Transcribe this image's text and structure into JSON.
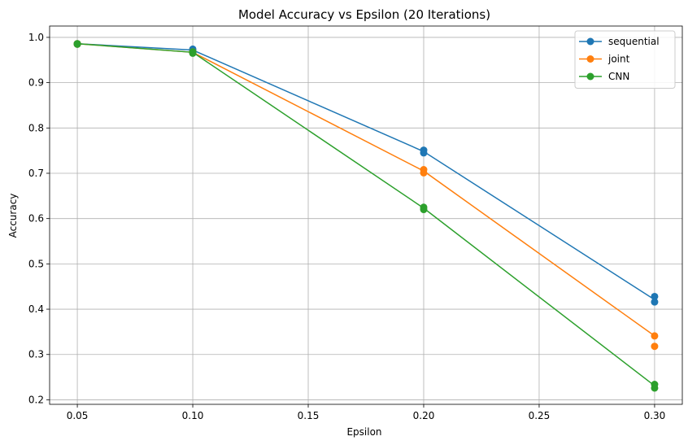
{
  "chart_data": {
    "type": "line",
    "title": "Model Accuracy vs Epsilon (20 Iterations)",
    "xlabel": "Epsilon",
    "ylabel": "Accuracy",
    "xlim": [
      0.038,
      0.312
    ],
    "ylim": [
      0.19,
      1.025
    ],
    "xticks": [
      0.05,
      0.1,
      0.15,
      0.2,
      0.25,
      0.3
    ],
    "xtick_labels": [
      "0.05",
      "0.10",
      "0.15",
      "0.20",
      "0.25",
      "0.30"
    ],
    "yticks": [
      0.2,
      0.3,
      0.4,
      0.5,
      0.6,
      0.7,
      0.8,
      0.9,
      1.0
    ],
    "ytick_labels": [
      "0.2",
      "0.3",
      "0.4",
      "0.5",
      "0.6",
      "0.7",
      "0.8",
      "0.9",
      "1.0"
    ],
    "grid": true,
    "legend_position": "top-right",
    "series": [
      {
        "name": "sequential",
        "color": "#1f77b4",
        "line": [
          [
            0.05,
            0.986
          ],
          [
            0.1,
            0.972
          ],
          [
            0.2,
            0.748
          ],
          [
            0.3,
            0.421
          ]
        ],
        "points": [
          [
            0.05,
            0.986
          ],
          [
            0.05,
            0.985
          ],
          [
            0.1,
            0.974
          ],
          [
            0.1,
            0.97
          ],
          [
            0.2,
            0.751
          ],
          [
            0.2,
            0.745
          ],
          [
            0.3,
            0.428
          ],
          [
            0.3,
            0.416
          ]
        ]
      },
      {
        "name": "joint",
        "color": "#ff7f0e",
        "line": [
          [
            0.05,
            0.986
          ],
          [
            0.1,
            0.967
          ],
          [
            0.2,
            0.705
          ],
          [
            0.3,
            0.341
          ]
        ],
        "points": [
          [
            0.05,
            0.986
          ],
          [
            0.05,
            0.985
          ],
          [
            0.1,
            0.968
          ],
          [
            0.1,
            0.966
          ],
          [
            0.2,
            0.708
          ],
          [
            0.2,
            0.701
          ],
          [
            0.3,
            0.341
          ],
          [
            0.3,
            0.318
          ]
        ]
      },
      {
        "name": "CNN",
        "color": "#2ca02c",
        "line": [
          [
            0.05,
            0.986
          ],
          [
            0.1,
            0.967
          ],
          [
            0.2,
            0.623
          ],
          [
            0.3,
            0.231
          ]
        ],
        "points": [
          [
            0.05,
            0.986
          ],
          [
            0.05,
            0.985
          ],
          [
            0.1,
            0.968
          ],
          [
            0.1,
            0.965
          ],
          [
            0.2,
            0.625
          ],
          [
            0.2,
            0.62
          ],
          [
            0.3,
            0.234
          ],
          [
            0.3,
            0.226
          ]
        ]
      }
    ]
  }
}
